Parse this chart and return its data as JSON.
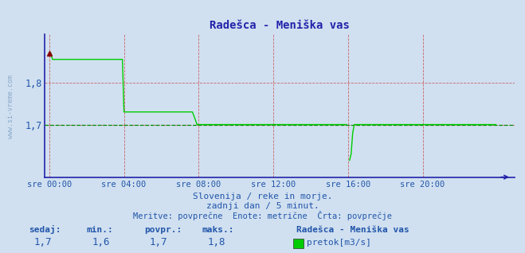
{
  "title": "Radešca - Meniška vas",
  "bg_color": "#d0e0f0",
  "plot_bg_color": "#d0e0f0",
  "line_color": "#00cc00",
  "avg_line_color": "#008800",
  "axis_color": "#2222aa",
  "grid_color": "#cc4444",
  "title_color": "#2222aa",
  "text_color": "#2255aa",
  "ylabel_ticks": [
    1.7,
    1.8
  ],
  "ymin": 1.575,
  "ymax": 1.915,
  "xmin": 0,
  "xmax": 287,
  "avg_value": 1.7,
  "subtitle1": "Slovenija / reke in morje.",
  "subtitle2": "zadnji dan / 5 minut.",
  "subtitle3": "Meritve: povprečne  Enote: metrične  Črta: povprečje",
  "stat_labels": [
    "sedaj:",
    "min.:",
    "povpr.:",
    "maks.:"
  ],
  "stat_values": [
    "1,7",
    "1,6",
    "1,7",
    "1,8"
  ],
  "legend_label": "Radešca - Meniška vas",
  "legend_series": "pretok[m3/s]",
  "watermark": "www.si-vreme.com",
  "xtick_labels": [
    "sre 00:00",
    "sre 04:00",
    "sre 08:00",
    "sre 12:00",
    "sre 16:00",
    "sre 20:00"
  ],
  "xtick_positions": [
    0,
    48,
    96,
    144,
    192,
    240
  ]
}
